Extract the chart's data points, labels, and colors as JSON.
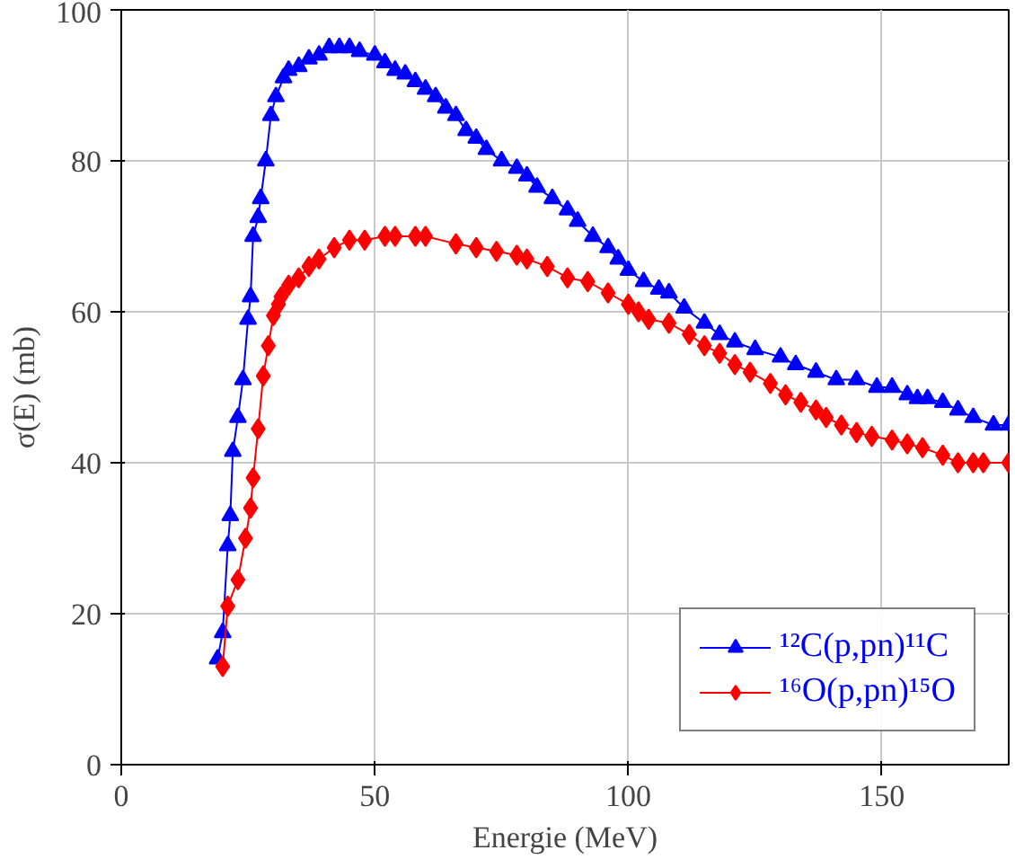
{
  "chart_data": {
    "type": "line",
    "xlabel": "Energie (MeV)",
    "ylabel": "σ(E) (mb)",
    "xlim": [
      0,
      175
    ],
    "ylim": [
      0,
      100
    ],
    "xticks": [
      0,
      50,
      100,
      150
    ],
    "yticks": [
      0,
      20,
      40,
      60,
      80,
      100
    ],
    "grid": true,
    "legend": "bottom right",
    "series": [
      {
        "name": "¹²C(p,pn)¹¹C",
        "color": "#0000ff",
        "marker": "triangle",
        "x": [
          19,
          20,
          21,
          21.5,
          22,
          23,
          24,
          25,
          25.5,
          26,
          27,
          27.5,
          28.5,
          29.5,
          30.5,
          32,
          33,
          35,
          37,
          39,
          41,
          43,
          45,
          47,
          50,
          52,
          54,
          56,
          58,
          60,
          62,
          64,
          66,
          68,
          70,
          72,
          75,
          78,
          80,
          82,
          85,
          88,
          90,
          93,
          96,
          98,
          100,
          103,
          106,
          108,
          111,
          115,
          118,
          121,
          125,
          130,
          133,
          137,
          141,
          145,
          149,
          152,
          155,
          157,
          159,
          162,
          165,
          168,
          172,
          175
        ],
        "values": [
          14,
          17.5,
          29,
          33,
          41.5,
          46,
          51,
          59,
          62,
          70,
          72.5,
          75,
          80,
          86,
          88.5,
          91,
          92,
          92.5,
          93.5,
          94,
          95,
          95,
          95,
          94.5,
          94,
          93,
          92,
          91.5,
          90.5,
          89.5,
          88.5,
          87,
          86,
          84,
          83,
          81.5,
          80,
          79,
          78,
          76.5,
          75,
          73.5,
          72,
          70,
          68.5,
          67,
          65.5,
          64,
          63,
          62.5,
          60.5,
          58.5,
          57,
          56,
          55,
          54,
          53,
          52,
          51,
          51,
          50,
          50,
          49,
          48.5,
          48.5,
          48,
          47,
          46,
          45,
          45
        ]
      },
      {
        "name": "¹⁶O(p,pn)¹⁵O",
        "color": "#ff0000",
        "marker": "diamond",
        "x": [
          20,
          21,
          23,
          24.5,
          25.5,
          26,
          27,
          28,
          29,
          30,
          31,
          31.5,
          33,
          35,
          37,
          39,
          42,
          45,
          48,
          52,
          54,
          58,
          60,
          66,
          70,
          74,
          78,
          80,
          84,
          88,
          92,
          96,
          100,
          102,
          104,
          108,
          112,
          115,
          118,
          121,
          124,
          128,
          131,
          134,
          137,
          139,
          142,
          145,
          148,
          152,
          155,
          158,
          162,
          165,
          168,
          170,
          175
        ],
        "values": [
          13,
          21,
          24.5,
          30,
          34,
          38,
          44.5,
          51.5,
          55.5,
          59.5,
          61,
          62,
          63.5,
          64.5,
          66,
          67,
          68.5,
          69.5,
          69.5,
          70,
          70,
          70,
          70,
          69,
          68.5,
          68,
          67.5,
          67,
          66,
          64.5,
          64,
          62.5,
          61,
          60,
          59,
          58.5,
          57,
          55.5,
          54.5,
          53,
          52,
          50.5,
          49,
          48,
          47,
          46,
          45,
          44,
          43.5,
          43,
          42.5,
          42,
          41,
          40,
          40,
          40,
          40
        ]
      }
    ]
  }
}
